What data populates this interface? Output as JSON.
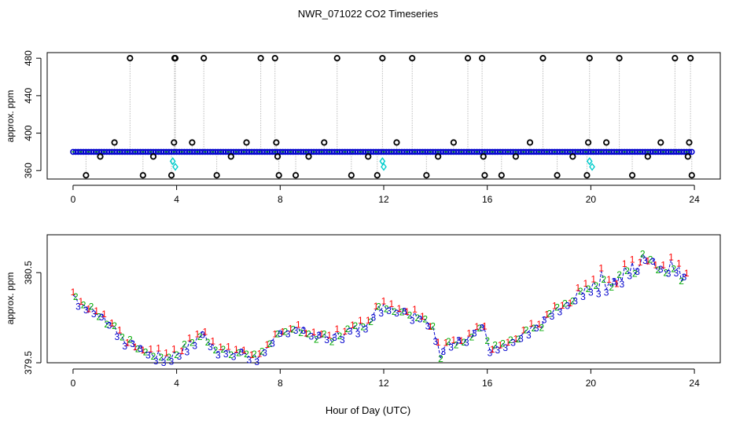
{
  "title": "NWR_071022  CO2 Timeseries",
  "colors": {
    "ch1": "#ff0000",
    "ch2": "#00aa00",
    "ch3": "#0000cc",
    "line": "#0000cc",
    "raw_mark": "#000000",
    "cal_mark": "#00cccc",
    "drop": "#999999",
    "bg": "#ffffff"
  },
  "chart_data": [
    {
      "type": "scatter",
      "name": "top-panel",
      "ylabel": "approx. ppm",
      "xlabel": "",
      "xlim": [
        -1.0,
        25.0
      ],
      "ylim": [
        351,
        486
      ],
      "xticks": [
        0,
        4,
        8,
        12,
        16,
        20,
        24
      ],
      "xtick_labels": [
        "0",
        "4",
        "8",
        "12",
        "16",
        "20",
        "24"
      ],
      "yticks": [
        360,
        400,
        440,
        480
      ],
      "ytick_labels": [
        "360",
        "400",
        "440",
        "480"
      ],
      "baseline_level": 380,
      "baseline_start": 0.0,
      "baseline_end": 23.9,
      "baseline_count": 240,
      "outliers": [
        {
          "x": 0.5,
          "y": 355
        },
        {
          "x": 1.05,
          "y": 375
        },
        {
          "x": 1.6,
          "y": 390
        },
        {
          "x": 2.2,
          "y": 480
        },
        {
          "x": 2.7,
          "y": 355
        },
        {
          "x": 3.1,
          "y": 375
        },
        {
          "x": 3.8,
          "y": 355
        },
        {
          "x": 3.9,
          "y": 390
        },
        {
          "x": 3.92,
          "y": 480
        },
        {
          "x": 3.95,
          "y": 480
        },
        {
          "x": 4.6,
          "y": 390
        },
        {
          "x": 5.05,
          "y": 480
        },
        {
          "x": 5.55,
          "y": 355
        },
        {
          "x": 6.1,
          "y": 375
        },
        {
          "x": 6.7,
          "y": 390
        },
        {
          "x": 7.25,
          "y": 480
        },
        {
          "x": 7.8,
          "y": 480
        },
        {
          "x": 7.85,
          "y": 390
        },
        {
          "x": 7.9,
          "y": 375
        },
        {
          "x": 7.95,
          "y": 355
        },
        {
          "x": 8.6,
          "y": 355
        },
        {
          "x": 9.1,
          "y": 375
        },
        {
          "x": 9.7,
          "y": 390
        },
        {
          "x": 10.2,
          "y": 480
        },
        {
          "x": 10.75,
          "y": 355
        },
        {
          "x": 11.4,
          "y": 375
        },
        {
          "x": 11.75,
          "y": 355
        },
        {
          "x": 11.95,
          "y": 480
        },
        {
          "x": 12.5,
          "y": 390
        },
        {
          "x": 13.1,
          "y": 480
        },
        {
          "x": 13.65,
          "y": 355
        },
        {
          "x": 14.1,
          "y": 375
        },
        {
          "x": 14.7,
          "y": 390
        },
        {
          "x": 15.25,
          "y": 480
        },
        {
          "x": 15.8,
          "y": 480
        },
        {
          "x": 15.85,
          "y": 375
        },
        {
          "x": 15.9,
          "y": 355
        },
        {
          "x": 16.55,
          "y": 355
        },
        {
          "x": 17.1,
          "y": 375
        },
        {
          "x": 17.65,
          "y": 390
        },
        {
          "x": 18.15,
          "y": 480
        },
        {
          "x": 18.7,
          "y": 355
        },
        {
          "x": 19.3,
          "y": 375
        },
        {
          "x": 19.85,
          "y": 355
        },
        {
          "x": 19.9,
          "y": 390
        },
        {
          "x": 19.95,
          "y": 480
        },
        {
          "x": 20.6,
          "y": 390
        },
        {
          "x": 21.1,
          "y": 480
        },
        {
          "x": 21.6,
          "y": 355
        },
        {
          "x": 22.2,
          "y": 375
        },
        {
          "x": 22.7,
          "y": 390
        },
        {
          "x": 23.25,
          "y": 480
        },
        {
          "x": 23.75,
          "y": 375
        },
        {
          "x": 23.8,
          "y": 390
        },
        {
          "x": 23.85,
          "y": 480
        },
        {
          "x": 23.9,
          "y": 355
        }
      ],
      "calibration_points": [
        {
          "x": 3.85,
          "y": 370
        },
        {
          "x": 3.95,
          "y": 364
        },
        {
          "x": 11.95,
          "y": 370
        },
        {
          "x": 12.0,
          "y": 364
        },
        {
          "x": 19.95,
          "y": 370
        },
        {
          "x": 20.05,
          "y": 364
        }
      ]
    },
    {
      "type": "line",
      "name": "bottom-panel",
      "ylabel": "approx. ppm",
      "xlabel": "Hour of Day (UTC)",
      "xlim": [
        -1.0,
        25.0
      ],
      "ylim": [
        379.5,
        380.92
      ],
      "xticks": [
        0,
        4,
        8,
        12,
        16,
        20,
        24
      ],
      "xtick_labels": [
        "0",
        "4",
        "8",
        "12",
        "16",
        "20",
        "24"
      ],
      "yticks": [
        379.5,
        380.5
      ],
      "ytick_labels": [
        "379.5",
        "380.5"
      ],
      "step_hours": 0.1,
      "channel_labels": [
        "1",
        "2",
        "3"
      ],
      "anchors": [
        {
          "x": 0.0,
          "y": 380.25
        },
        {
          "x": 0.5,
          "y": 380.12
        },
        {
          "x": 1.0,
          "y": 380.03
        },
        {
          "x": 1.5,
          "y": 379.93
        },
        {
          "x": 2.0,
          "y": 379.75
        },
        {
          "x": 2.5,
          "y": 379.66
        },
        {
          "x": 3.0,
          "y": 379.6
        },
        {
          "x": 3.5,
          "y": 379.56
        },
        {
          "x": 4.0,
          "y": 379.6
        },
        {
          "x": 4.5,
          "y": 379.7
        },
        {
          "x": 5.0,
          "y": 379.82
        },
        {
          "x": 5.5,
          "y": 379.68
        },
        {
          "x": 6.0,
          "y": 379.6
        },
        {
          "x": 6.5,
          "y": 379.62
        },
        {
          "x": 7.0,
          "y": 379.57
        },
        {
          "x": 7.5,
          "y": 379.62
        },
        {
          "x": 8.0,
          "y": 379.85
        },
        {
          "x": 8.5,
          "y": 379.88
        },
        {
          "x": 9.0,
          "y": 379.84
        },
        {
          "x": 9.5,
          "y": 379.79
        },
        {
          "x": 10.0,
          "y": 379.77
        },
        {
          "x": 10.5,
          "y": 379.85
        },
        {
          "x": 11.0,
          "y": 379.88
        },
        {
          "x": 11.5,
          "y": 380.0
        },
        {
          "x": 12.0,
          "y": 380.15
        },
        {
          "x": 12.5,
          "y": 380.1
        },
        {
          "x": 13.0,
          "y": 380.06
        },
        {
          "x": 13.5,
          "y": 380.02
        },
        {
          "x": 13.9,
          "y": 379.88
        },
        {
          "x": 14.2,
          "y": 379.56
        },
        {
          "x": 14.5,
          "y": 379.72
        },
        {
          "x": 15.0,
          "y": 379.75
        },
        {
          "x": 15.5,
          "y": 379.85
        },
        {
          "x": 15.8,
          "y": 379.92
        },
        {
          "x": 16.1,
          "y": 379.65
        },
        {
          "x": 16.5,
          "y": 379.66
        },
        {
          "x": 17.0,
          "y": 379.72
        },
        {
          "x": 17.5,
          "y": 379.82
        },
        {
          "x": 18.0,
          "y": 379.9
        },
        {
          "x": 18.5,
          "y": 380.06
        },
        {
          "x": 19.0,
          "y": 380.12
        },
        {
          "x": 19.5,
          "y": 380.25
        },
        {
          "x": 20.0,
          "y": 380.38
        },
        {
          "x": 20.5,
          "y": 380.42
        },
        {
          "x": 21.0,
          "y": 380.4
        },
        {
          "x": 21.5,
          "y": 380.52
        },
        {
          "x": 22.0,
          "y": 380.62
        },
        {
          "x": 22.3,
          "y": 380.72
        },
        {
          "x": 22.6,
          "y": 380.55
        },
        {
          "x": 23.0,
          "y": 380.62
        },
        {
          "x": 23.4,
          "y": 380.48
        },
        {
          "x": 23.7,
          "y": 380.52
        }
      ]
    }
  ]
}
